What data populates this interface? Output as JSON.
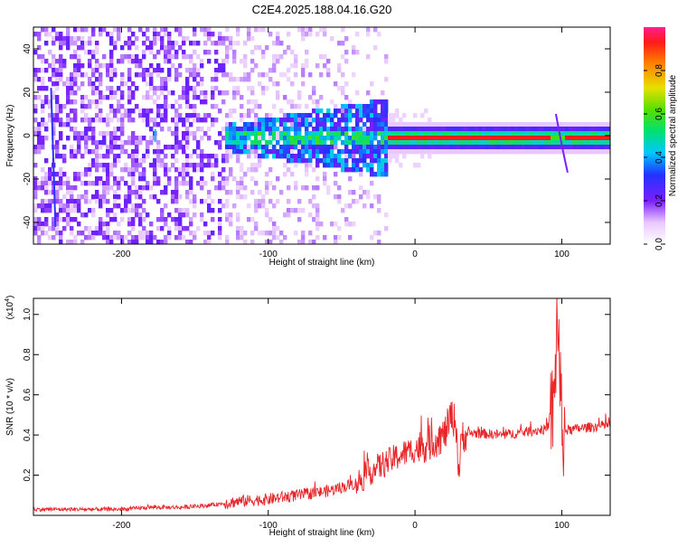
{
  "chart_data": [
    {
      "type": "heatmap",
      "title": "C2E4.2025.188.04.16.G20",
      "xlabel": "Height of straight line (km)",
      "ylabel": "Frequency (Hz)",
      "xlim": [
        -260,
        133
      ],
      "ylim": [
        -50,
        50
      ],
      "x_ticks": [
        -200,
        -100,
        0,
        100
      ],
      "y_ticks": [
        -40,
        -20,
        0,
        20,
        40
      ],
      "colorbar": {
        "label": "Normalized spectral amplitude",
        "range": [
          0,
          1
        ],
        "ticks": [
          "0.0",
          "0.2",
          "0.4",
          "0.6",
          "0.8"
        ]
      },
      "features": {
        "noise_region_x": [
          -260,
          -130
        ],
        "signal_band_center_hz": 0,
        "signal_strong_from_km": -15,
        "artifact_near_km": 97
      }
    },
    {
      "type": "line",
      "xlabel": "Height of straight line (km)",
      "ylabel": "SNR (10 * v/v)",
      "y_scale_label": "(x10",
      "y_scale_exponent": "4",
      "xlim": [
        -260,
        133
      ],
      "ylim": [
        0,
        1.08
      ],
      "x_ticks": [
        -200,
        -100,
        0,
        100
      ],
      "y_ticks": [
        0.2,
        0.4,
        0.6,
        0.8,
        1.0
      ],
      "series": [
        {
          "color": "#e8262a",
          "x": [
            -260,
            -240,
            -220,
            -200,
            -180,
            -160,
            -140,
            -120,
            -100,
            -80,
            -60,
            -40,
            -30,
            -20,
            -10,
            0,
            10,
            20,
            25,
            28,
            30,
            32,
            40,
            60,
            80,
            90,
            95,
            97,
            100,
            110,
            120,
            133
          ],
          "y": [
            0.03,
            0.03,
            0.03,
            0.03,
            0.04,
            0.04,
            0.05,
            0.07,
            0.08,
            0.1,
            0.12,
            0.16,
            0.22,
            0.26,
            0.3,
            0.33,
            0.36,
            0.4,
            0.5,
            0.45,
            0.2,
            0.4,
            0.41,
            0.4,
            0.42,
            0.43,
            0.55,
            1.05,
            0.42,
            0.43,
            0.44,
            0.45
          ]
        }
      ]
    }
  ]
}
